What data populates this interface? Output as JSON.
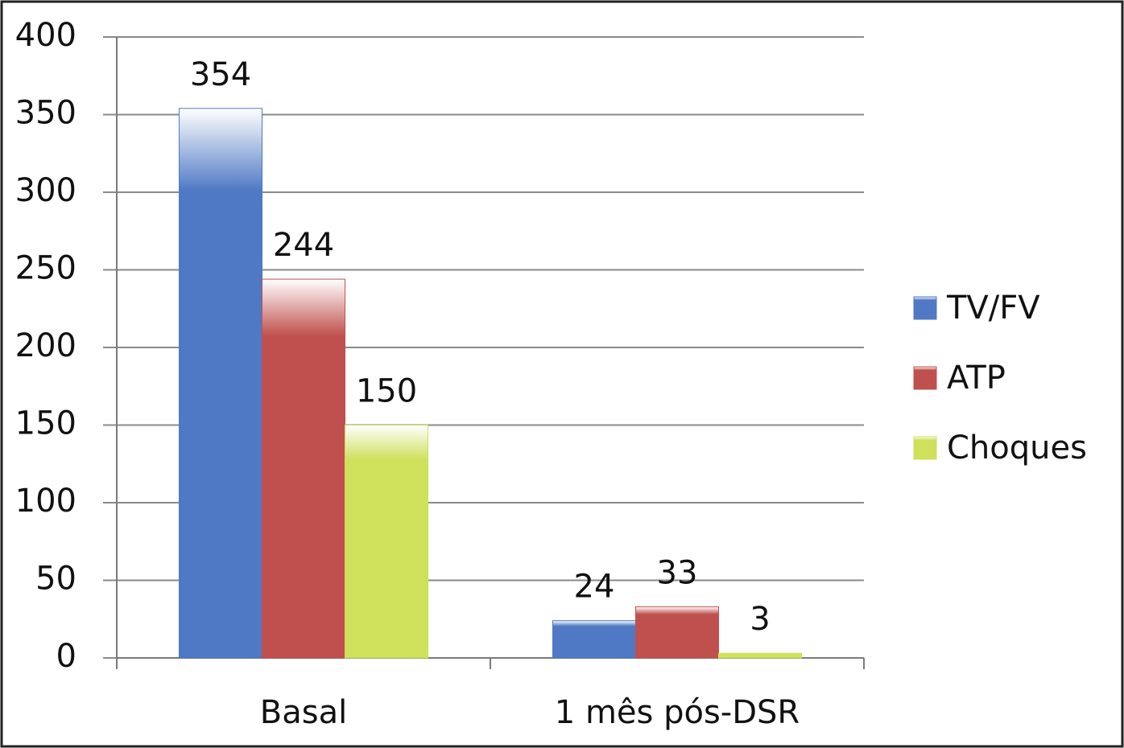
{
  "chart_data": {
    "type": "bar",
    "categories": [
      "Basal",
      "1 mês pós-DSR"
    ],
    "series": [
      {
        "name": "TV/FV",
        "color": "#4f79c4",
        "values": [
          354,
          24
        ]
      },
      {
        "name": "ATP",
        "color": "#c0504d",
        "values": [
          244,
          33
        ]
      },
      {
        "name": "Choques",
        "color": "#cfe05a",
        "values": [
          150,
          3
        ]
      }
    ],
    "ylim": [
      0,
      400
    ],
    "yticks": [
      0,
      50,
      100,
      150,
      200,
      250,
      300,
      350,
      400
    ],
    "grid": true,
    "legend": "right"
  }
}
